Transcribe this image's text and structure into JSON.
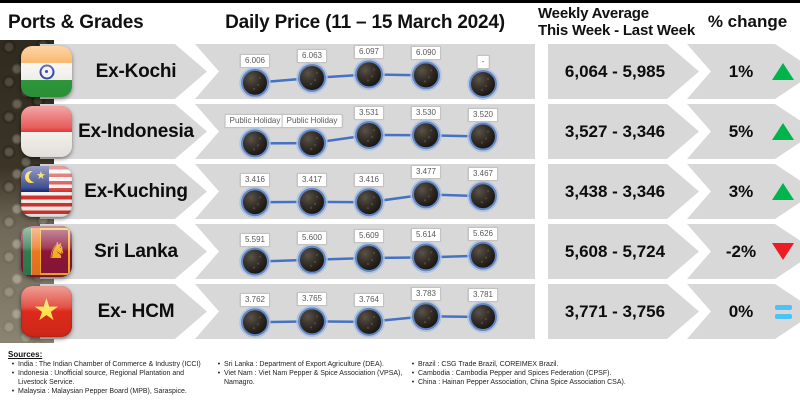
{
  "header": {
    "ports_grades": "Ports & Grades",
    "daily_price": "Daily Price (11 – 15 March 2024)",
    "weekly_avg_line1": "Weekly Average",
    "weekly_avg_line2": "This Week - Last Week",
    "pct_change": "% change"
  },
  "colors": {
    "band": "#d8d8d8",
    "line": "#4472c4",
    "point_ring": "#6288c4",
    "point_halo": "#b3c3e0",
    "up": "#00b44c",
    "down": "#ec1c24",
    "flat": "#4cc3f5",
    "label_border": "#c3c3c3",
    "label_text": "#595959"
  },
  "rows": [
    {
      "port": "Ex-Kochi",
      "flag_icon": "india-flag-icon",
      "weekly": "6,064 - 5,985",
      "pct": "1%",
      "direction": "up",
      "trend_icon": "trend-up-icon"
    },
    {
      "port": "Ex-Indonesia",
      "flag_icon": "indonesia-flag-icon",
      "weekly": "3,527 - 3,346",
      "pct": "5%",
      "direction": "up",
      "trend_icon": "trend-up-icon"
    },
    {
      "port": "Ex-Kuching",
      "flag_icon": "malaysia-flag-icon",
      "weekly": "3,438 - 3,346",
      "pct": "3%",
      "direction": "up",
      "trend_icon": "trend-up-icon"
    },
    {
      "port": "Sri Lanka",
      "flag_icon": "sri-lanka-flag-icon",
      "weekly": "5,608 - 5,724",
      "pct": "-2%",
      "direction": "down",
      "trend_icon": "trend-down-icon"
    },
    {
      "port": "Ex- HCM",
      "flag_icon": "vietnam-flag-icon",
      "weekly": "3,771 - 3,756",
      "pct": "0%",
      "direction": "flat",
      "trend_icon": "trend-flat-icon"
    }
  ],
  "chart_data": [
    {
      "type": "line",
      "name": "Ex-Kochi",
      "period": "11 – 15 March 2024",
      "point_labels": [
        "6.006",
        "6.063",
        "6.097",
        "6.090",
        "-"
      ],
      "values": [
        6006,
        6063,
        6097,
        6090,
        null
      ],
      "levels": [
        0.1,
        0.5,
        0.8,
        0.72,
        0.0
      ],
      "gaps": [
        3
      ]
    },
    {
      "type": "line",
      "name": "Ex-Indonesia",
      "period": "11 – 15 March 2024",
      "point_labels": [
        "Public Holiday",
        "Public Holiday",
        "3.531",
        "3.530",
        "3.520"
      ],
      "values": [
        null,
        null,
        3531,
        3530,
        3520
      ],
      "levels": [
        0.05,
        0.07,
        0.75,
        0.73,
        0.62
      ],
      "gaps": []
    },
    {
      "type": "line",
      "name": "Ex-Kuching",
      "period": "11 – 15 March 2024",
      "point_labels": [
        "3.416",
        "3.417",
        "3.416",
        "3.477",
        "3.467"
      ],
      "values": [
        3416,
        3417,
        3416,
        3477,
        3467
      ],
      "levels": [
        0.15,
        0.18,
        0.15,
        0.8,
        0.65
      ],
      "gaps": []
    },
    {
      "type": "line",
      "name": "Sri Lanka",
      "period": "11 – 15 March 2024",
      "point_labels": [
        "5.591",
        "5.600",
        "5.609",
        "5.614",
        "5.626"
      ],
      "values": [
        5591,
        5600,
        5609,
        5614,
        5626
      ],
      "levels": [
        0.2,
        0.35,
        0.5,
        0.55,
        0.7
      ],
      "gaps": []
    },
    {
      "type": "line",
      "name": "Ex- HCM",
      "period": "11 – 15 March 2024",
      "point_labels": [
        "3.762",
        "3.765",
        "3.764",
        "3.783",
        "3.781"
      ],
      "values": [
        3762,
        3765,
        3764,
        3783,
        3781
      ],
      "levels": [
        0.15,
        0.22,
        0.18,
        0.65,
        0.58
      ],
      "gaps": []
    }
  ],
  "sources": {
    "title": "Sources:",
    "col1": [
      "India : The Indian Chamber of Commerce & Industry (ICCI)",
      "Indonesia : Unofficial source, Regional Plantation and Livestock Service.",
      "Malaysia : Malaysian Pepper Board (MPB), Saraspice."
    ],
    "col2": [
      "Sri Lanka : Department of Export Agriculture (DEA).",
      "Viet Nam : Viet Nam Pepper & Spice Association (VPSA), Namagro."
    ],
    "col3": [
      "Brazil : CSG Trade Brazil, COREIMEX Brazil.",
      "Cambodia : Cambodia Pepper and Spices Federation (CPSF).",
      "China : Hainan Pepper Association, China Spice Association CSA)."
    ]
  }
}
